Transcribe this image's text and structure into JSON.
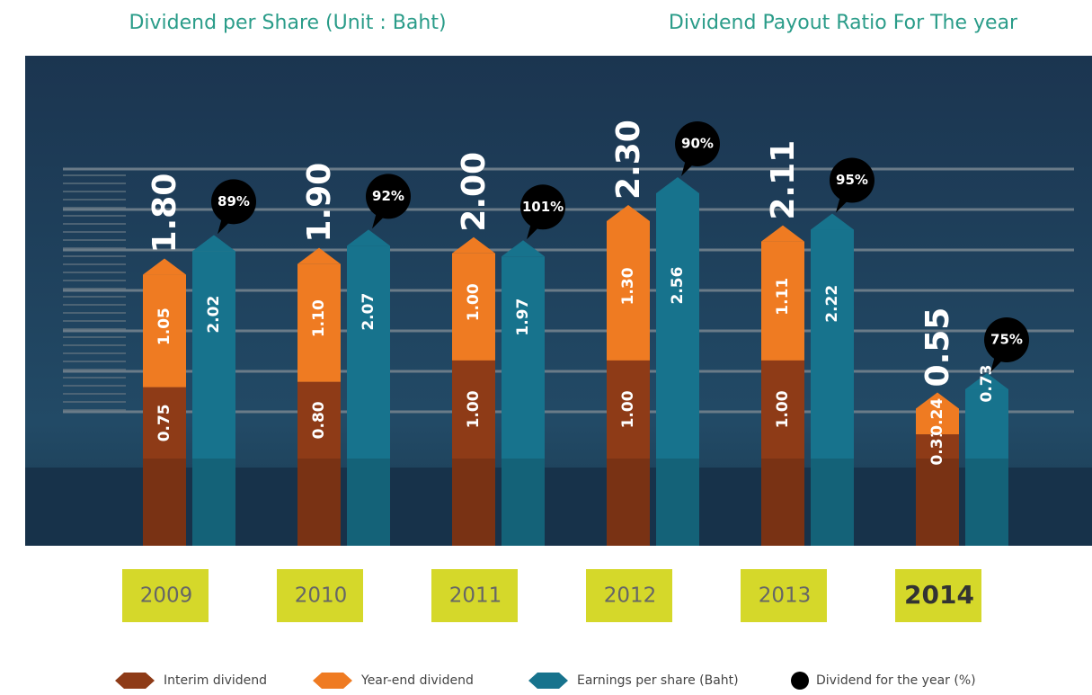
{
  "chart_data": {
    "type": "bar",
    "title": "Dividend per Share (Unit : Baht)",
    "subtitle": "Dividend Payout Ratio For The year",
    "categories": [
      "2009",
      "2010",
      "2011",
      "2012",
      "2013",
      "2014"
    ],
    "series": [
      {
        "name": "Interim dividend",
        "color": "#8e3b17",
        "values": [
          0.75,
          0.8,
          1,
          1,
          1,
          0.31
        ],
        "value_labels": [
          "0.75",
          "0.80",
          "1.00",
          "1.00",
          "1.00",
          "0.31"
        ]
      },
      {
        "name": "Year-end dividend",
        "color": "#ef7b22",
        "values": [
          1.05,
          1.1,
          1,
          1.3,
          1.11,
          0.24
        ],
        "value_labels": [
          "1.05",
          "1.10",
          "1.00",
          "1.30",
          "1.11",
          "0.24"
        ]
      },
      {
        "name": "Earnings per share (Baht)",
        "color": "#17738d",
        "values": [
          2.02,
          2.07,
          1.97,
          2.56,
          2.22,
          0.73
        ]
      },
      {
        "name": "Dividend for the year (%)",
        "color": "#000000",
        "values": [
          89,
          92,
          101,
          90,
          95,
          75
        ],
        "value_labels": [
          "89%",
          "92%",
          "101%",
          "90%",
          "95%",
          "75%"
        ]
      }
    ],
    "totals": {
      "values": [
        1.8,
        1.9,
        2,
        2.3,
        2.11,
        0.55
      ],
      "value_labels": [
        "1.80",
        "1.90",
        "2.00",
        "2.30",
        "2.11",
        "0.55"
      ]
    }
  }
}
